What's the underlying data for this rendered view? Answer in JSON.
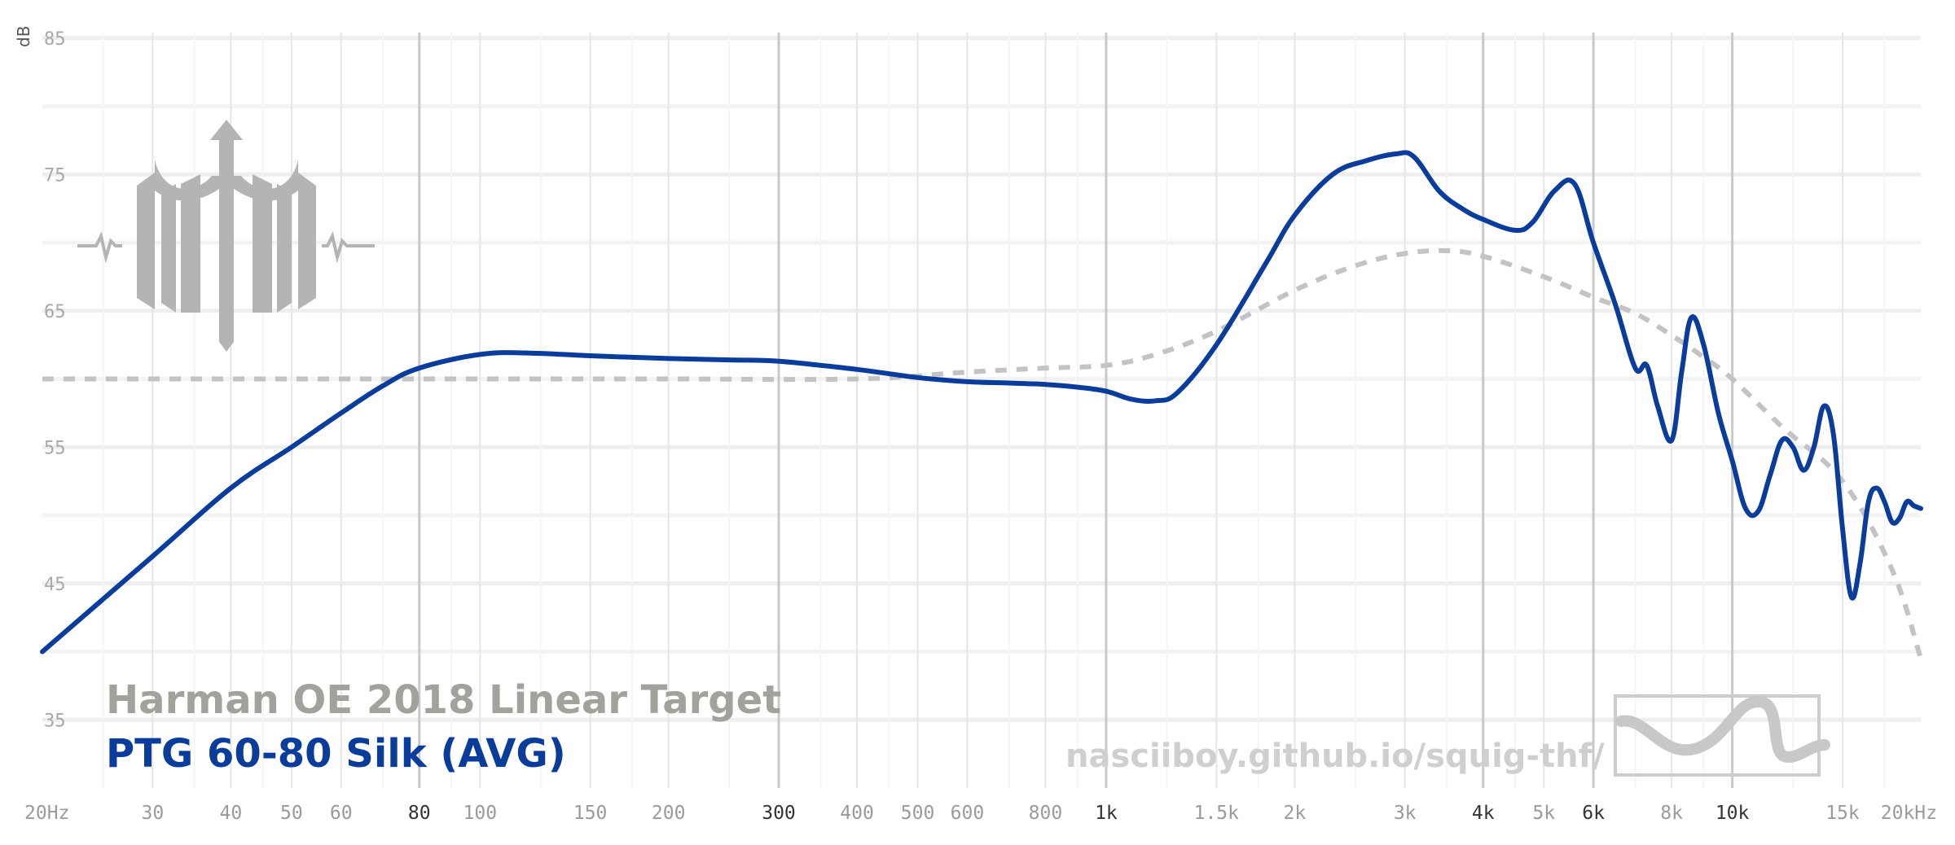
{
  "chart_data": {
    "type": "line",
    "x_scale": "log",
    "xlim": [
      20,
      20000
    ],
    "ylim": [
      30,
      86
    ],
    "y_unit": "dB",
    "y_ticks": [
      {
        "value": 85,
        "label": "85"
      },
      {
        "value": 75,
        "label": "75"
      },
      {
        "value": 65,
        "label": "65"
      },
      {
        "value": 55,
        "label": "55"
      },
      {
        "value": 45,
        "label": "45"
      },
      {
        "value": 35,
        "label": "35"
      }
    ],
    "y_minor_gridlines": [
      80,
      70,
      60,
      50,
      40
    ],
    "x_ticks": [
      {
        "value": 20,
        "label": "20Hz",
        "major": false
      },
      {
        "value": 30,
        "label": "30",
        "major": false
      },
      {
        "value": 40,
        "label": "40",
        "major": false
      },
      {
        "value": 50,
        "label": "50",
        "major": false
      },
      {
        "value": 60,
        "label": "60",
        "major": false
      },
      {
        "value": 80,
        "label": "80",
        "major": true
      },
      {
        "value": 100,
        "label": "100",
        "major": false
      },
      {
        "value": 150,
        "label": "150",
        "major": false
      },
      {
        "value": 200,
        "label": "200",
        "major": false
      },
      {
        "value": 300,
        "label": "300",
        "major": true
      },
      {
        "value": 400,
        "label": "400",
        "major": false
      },
      {
        "value": 500,
        "label": "500",
        "major": false
      },
      {
        "value": 600,
        "label": "600",
        "major": false
      },
      {
        "value": 800,
        "label": "800",
        "major": false
      },
      {
        "value": 1000,
        "label": "1k",
        "major": true
      },
      {
        "value": 1500,
        "label": "1.5k",
        "major": false
      },
      {
        "value": 2000,
        "label": "2k",
        "major": false
      },
      {
        "value": 3000,
        "label": "3k",
        "major": false
      },
      {
        "value": 4000,
        "label": "4k",
        "major": true
      },
      {
        "value": 5000,
        "label": "5k",
        "major": false
      },
      {
        "value": 6000,
        "label": "6k",
        "major": true
      },
      {
        "value": 8000,
        "label": "8k",
        "major": false
      },
      {
        "value": 10000,
        "label": "10k",
        "major": true
      },
      {
        "value": 15000,
        "label": "15k",
        "major": false
      },
      {
        "value": 20000,
        "label": "20kHz",
        "major": false
      }
    ],
    "x_minor_gridlines": [
      25,
      35,
      45,
      70,
      90,
      125,
      175,
      250,
      350,
      450,
      700,
      900,
      1250,
      1750,
      2500,
      3500,
      4500,
      7000,
      9000,
      12500,
      17500
    ],
    "grid": true,
    "series": [
      {
        "name": "Harman OE 2018 Linear Target",
        "color": "#c3c3c3",
        "dashed": true,
        "x": [
          20,
          40,
          80,
          200,
          400,
          600,
          800,
          1000,
          1200,
          1500,
          2000,
          2500,
          3000,
          3500,
          4000,
          5000,
          6000,
          7000,
          8000,
          9000,
          10000,
          12000,
          15000,
          18000,
          20000
        ],
        "y": [
          60,
          60,
          60,
          60,
          60,
          60.5,
          60.8,
          61,
          61.8,
          63.5,
          66.5,
          68.3,
          69.2,
          69.4,
          69.0,
          67.5,
          66.0,
          64.8,
          63.2,
          61.6,
          60.0,
          56.5,
          52.5,
          46.0,
          39.5
        ]
      },
      {
        "name": "PTG 60-80 Silk (AVG)",
        "color": "#0a3d9b",
        "dashed": false,
        "x": [
          20,
          30,
          40,
          50,
          60,
          70,
          80,
          100,
          120,
          150,
          200,
          250,
          300,
          400,
          500,
          600,
          700,
          800,
          900,
          1000,
          1100,
          1200,
          1300,
          1500,
          1800,
          2000,
          2300,
          2600,
          2900,
          3100,
          3400,
          3700,
          4000,
          4500,
          4800,
          5200,
          5600,
          6000,
          6500,
          7000,
          7300,
          7600,
          8000,
          8300,
          8600,
          9000,
          9500,
          10000,
          10500,
          11000,
          11500,
          12000,
          12500,
          13000,
          13500,
          14000,
          14500,
          15000,
          15500,
          16000,
          16500,
          17000,
          17500,
          18000,
          18500,
          19000,
          19500,
          20000
        ],
        "y": [
          40,
          47,
          52,
          55,
          57.5,
          59.5,
          60.8,
          61.8,
          61.9,
          61.7,
          61.5,
          61.4,
          61.3,
          60.7,
          60.1,
          59.8,
          59.7,
          59.6,
          59.4,
          59.1,
          58.5,
          58.4,
          59.0,
          62.5,
          68.5,
          72.0,
          75.0,
          76.0,
          76.5,
          76.3,
          73.8,
          72.5,
          71.7,
          70.9,
          71.5,
          73.8,
          74.3,
          70.0,
          65.5,
          60.8,
          61.0,
          58.0,
          55.5,
          60.5,
          64.5,
          62.5,
          57.5,
          54.0,
          50.5,
          50.3,
          53.0,
          55.5,
          55.0,
          53.3,
          55.0,
          58.0,
          56.0,
          49.0,
          44.0,
          46.5,
          51.0,
          52.0,
          51.0,
          49.5,
          49.8,
          51.0,
          50.7,
          50.5
        ]
      }
    ],
    "legend_position": "bottom-left"
  },
  "legend": {
    "target_label": "Harman OE 2018 Linear Target",
    "phone_label": "PTG 60-80 Silk (AVG)"
  },
  "watermark": {
    "url": "nasciiboy.github.io/squig-thf/",
    "logo_icon": "trident-logo-icon",
    "badge_icon": "wave-badge-icon"
  }
}
